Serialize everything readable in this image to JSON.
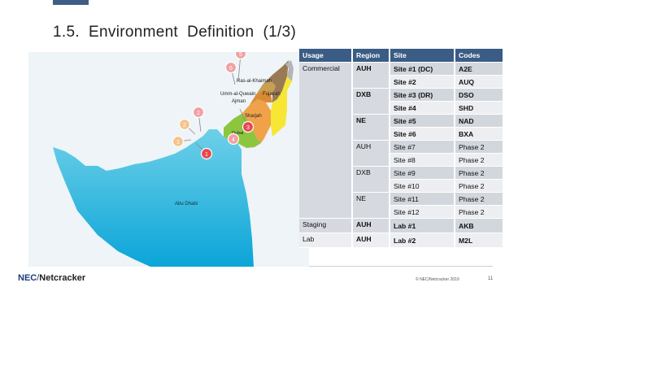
{
  "slide": {
    "title": "1.5.  Environment  Definition  (1/3)",
    "logo_brand": "NEC",
    "logo_sep": "/",
    "logo_partner": "Netcracker",
    "copyright": "© NEC/Netcracker  2019",
    "page_number": "11"
  },
  "map": {
    "labels": {
      "ras": "Ras-al-Khaimah",
      "umm": "Umm-al-Quwain",
      "fujairah": "Fujairah",
      "ajman": "Ajman",
      "sharjah": "Sharjah",
      "dubai": "Dubai",
      "abudhabi": "Abu Dhabi"
    },
    "pins": [
      "1",
      "2",
      "2",
      "1",
      "3",
      "4",
      "5",
      "6"
    ]
  },
  "table": {
    "headers": [
      "Usage",
      "Region",
      "Site",
      "Codes"
    ],
    "usage": [
      "Commercial",
      "Staging",
      "Lab"
    ],
    "regions": [
      "AUH",
      "DXB",
      "NE",
      "AUH",
      "DXB",
      "NE",
      "AUH",
      "AUH"
    ],
    "rows": [
      {
        "site": "Site #1 (DC)",
        "code": "A2E"
      },
      {
        "site": "Site #2",
        "code": "AUQ"
      },
      {
        "site": "Site #3 (DR)",
        "code": "DSO"
      },
      {
        "site": "Site #4",
        "code": "SHD"
      },
      {
        "site": "Site #5",
        "code": "NAD"
      },
      {
        "site": "Site #6",
        "code": "BXA"
      },
      {
        "site": "Site #7",
        "code": "Phase  2"
      },
      {
        "site": "Site #8",
        "code": "Phase  2"
      },
      {
        "site": "Site #9",
        "code": "Phase  2"
      },
      {
        "site": "Site #10",
        "code": "Phase  2"
      },
      {
        "site": "Site #11",
        "code": "Phase  2"
      },
      {
        "site": "Site #12",
        "code": "Phase  2"
      },
      {
        "site": "Lab #1",
        "code": "AKB"
      },
      {
        "site": "Lab #2",
        "code": "M2L"
      }
    ]
  },
  "colors": {
    "header": "#3a5c85",
    "sea": "#eef3f6",
    "abudhabi": "#29acd9",
    "pin_red": "#e8474f",
    "pin_pink": "#f2a0a3",
    "pin_orange": "#f5c48c"
  }
}
